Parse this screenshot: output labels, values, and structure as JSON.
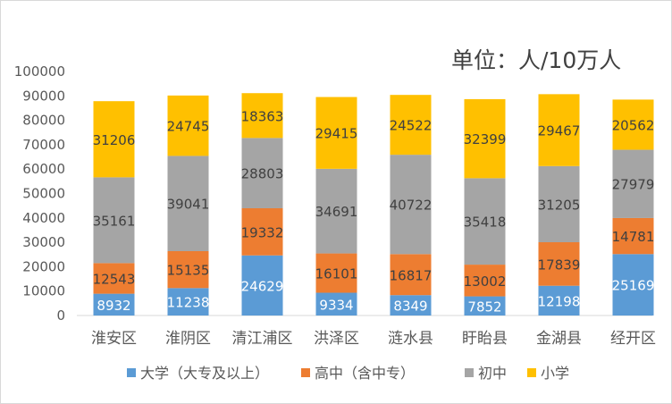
{
  "unit_label": "单位：人/10万人",
  "chart_data": {
    "type": "bar",
    "stacked": true,
    "categories": [
      "淮安区",
      "淮阴区",
      "清江浦区",
      "洪泽区",
      "涟水县",
      "盱眙县",
      "金湖县",
      "经开区"
    ],
    "series": [
      {
        "name": "大学（大专及以上）",
        "color": "#5b9bd5",
        "values": [
          8932,
          11238,
          24629,
          9334,
          8349,
          7852,
          12198,
          25169
        ]
      },
      {
        "name": "高中（含中专）",
        "color": "#ed7d31",
        "values": [
          12543,
          15135,
          19332,
          16101,
          16817,
          13002,
          17839,
          14781
        ]
      },
      {
        "name": "初中",
        "color": "#a5a5a5",
        "values": [
          35161,
          39041,
          28803,
          34691,
          40722,
          35418,
          31205,
          27979
        ]
      },
      {
        "name": "小学",
        "color": "#ffc000",
        "values": [
          31206,
          24745,
          18363,
          29415,
          24522,
          32399,
          29467,
          20562
        ]
      }
    ],
    "yticks": [
      "0",
      "10000",
      "20000",
      "30000",
      "40000",
      "50000",
      "60000",
      "70000",
      "80000",
      "90000",
      "100000"
    ],
    "ylim": [
      0,
      100000
    ],
    "grid": false,
    "legend_position": "bottom"
  }
}
